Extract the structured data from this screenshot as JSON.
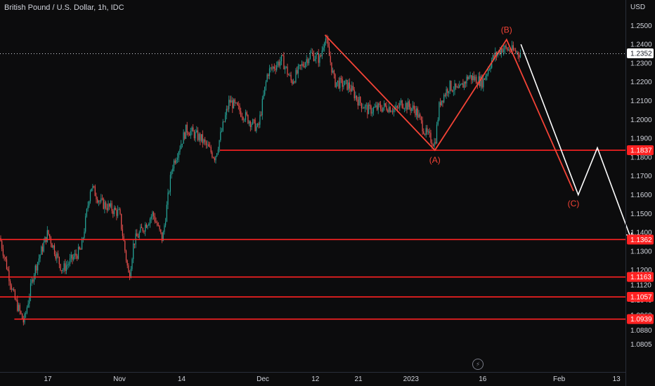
{
  "header": {
    "symbol_title": "British Pound / U.S. Dollar, 1h, IDC",
    "currency": "USD"
  },
  "icons": {
    "replay": "lightning-icon"
  },
  "colors": {
    "background": "#0c0c0d",
    "bull": "#26a69a",
    "bear": "#ef5350",
    "level_line": "#ff2222",
    "wave_red": "#f44336",
    "projection_white": "#ffffff",
    "axis_text": "#d1d4dc",
    "last_price": "#ffffff"
  },
  "chart_data": {
    "type": "candlestick",
    "title": "British Pound / U.S. Dollar, 1h, IDC",
    "ylabel": "USD",
    "ylim": [
      1.078,
      1.265
    ],
    "y_ticks": [
      "1.2500",
      "1.2400",
      "1.2300",
      "1.2200",
      "1.2100",
      "1.2000",
      "1.1900",
      "1.1800",
      "1.1700",
      "1.1600",
      "1.1500",
      "1.1400",
      "1.1300",
      "1.1200",
      "1.1120",
      "1.1040",
      "1.0960",
      "1.0880",
      "1.0805"
    ],
    "x_ticks": [
      "17",
      "Nov",
      "14",
      "Dec",
      "12",
      "21",
      "2023",
      "16",
      "Feb",
      "13"
    ],
    "last_price": "1.2352",
    "price_path": [
      {
        "x": "Oct 7",
        "y": 1.137
      },
      {
        "x": "Oct 10",
        "y": 1.105
      },
      {
        "x": "Oct 12",
        "y": 1.092
      },
      {
        "x": "Oct 14",
        "y": 1.118
      },
      {
        "x": "Oct 17",
        "y": 1.14
      },
      {
        "x": "Oct 20",
        "y": 1.12
      },
      {
        "x": "Oct 24",
        "y": 1.131
      },
      {
        "x": "Oct 26",
        "y": 1.165
      },
      {
        "x": "Oct 28",
        "y": 1.156
      },
      {
        "x": "Nov 1",
        "y": 1.15
      },
      {
        "x": "Nov 3",
        "y": 1.116
      },
      {
        "x": "Nov 4",
        "y": 1.135
      },
      {
        "x": "Nov 8",
        "y": 1.15
      },
      {
        "x": "Nov 10",
        "y": 1.136
      },
      {
        "x": "Nov 12",
        "y": 1.175
      },
      {
        "x": "Nov 15",
        "y": 1.195
      },
      {
        "x": "Nov 18",
        "y": 1.19
      },
      {
        "x": "Nov 21",
        "y": 1.18
      },
      {
        "x": "Nov 24",
        "y": 1.21
      },
      {
        "x": "Nov 28",
        "y": 1.2
      },
      {
        "x": "Nov 30",
        "y": 1.195
      },
      {
        "x": "Dec 2",
        "y": 1.225
      },
      {
        "x": "Dec 5",
        "y": 1.232
      },
      {
        "x": "Dec 7",
        "y": 1.22
      },
      {
        "x": "Dec 9",
        "y": 1.228
      },
      {
        "x": "Dec 11",
        "y": 1.235
      },
      {
        "x": "Dec 13",
        "y": 1.232
      },
      {
        "x": "Dec 14",
        "y": 1.245
      },
      {
        "x": "Dec 16",
        "y": 1.22
      },
      {
        "x": "Dec 19",
        "y": 1.218
      },
      {
        "x": "Dec 21",
        "y": 1.21
      },
      {
        "x": "Dec 23",
        "y": 1.205
      },
      {
        "x": "Dec 27",
        "y": 1.207
      },
      {
        "x": "Dec 29",
        "y": 1.205
      },
      {
        "x": "Dec 30",
        "y": 1.209
      },
      {
        "x": "Jan 2",
        "y": 1.205
      },
      {
        "x": "Jan 4",
        "y": 1.193
      },
      {
        "x": "Jan 6",
        "y": 1.187
      },
      {
        "x": "Jan 7",
        "y": 1.209
      },
      {
        "x": "Jan 9",
        "y": 1.218
      },
      {
        "x": "Jan 11",
        "y": 1.215
      },
      {
        "x": "Jan 13",
        "y": 1.223
      },
      {
        "x": "Jan 16",
        "y": 1.22
      },
      {
        "x": "Jan 18",
        "y": 1.232
      },
      {
        "x": "Jan 20",
        "y": 1.238
      },
      {
        "x": "Jan 23",
        "y": 1.236
      },
      {
        "x": "Jan 24",
        "y": 1.235
      }
    ],
    "levels": [
      {
        "value": 1.1837,
        "label": "1.1837",
        "from": "Nov 22"
      },
      {
        "value": 1.1362,
        "label": "1.1362",
        "from": "Oct 7"
      },
      {
        "value": 1.1163,
        "label": "1.1163",
        "from": "Oct 7"
      },
      {
        "value": 1.1057,
        "label": "1.1057",
        "from": "Oct 7"
      },
      {
        "value": 1.0939,
        "label": "1.0939",
        "from": "Oct 10"
      }
    ],
    "wave_red": [
      {
        "x": "Dec 14",
        "y": 1.245
      },
      {
        "x": "Jan 6",
        "y": 1.1837
      },
      {
        "x": "Jan 21",
        "y": 1.2425
      },
      {
        "x": "Feb 4",
        "y": 1.162
      }
    ],
    "wave_labels": [
      {
        "text": "(A)",
        "x": "Jan 6",
        "y": 1.1837
      },
      {
        "text": "(B)",
        "x": "Jan 21",
        "y": 1.2425
      },
      {
        "text": "(C)",
        "x": "Feb 4",
        "y": 1.162
      }
    ],
    "projection_white": [
      {
        "x": "Jan 24",
        "y": 1.24
      },
      {
        "x": "Feb 5",
        "y": 1.16
      },
      {
        "x": "Feb 9",
        "y": 1.185
      },
      {
        "x": "Feb 16",
        "y": 1.137
      }
    ]
  }
}
